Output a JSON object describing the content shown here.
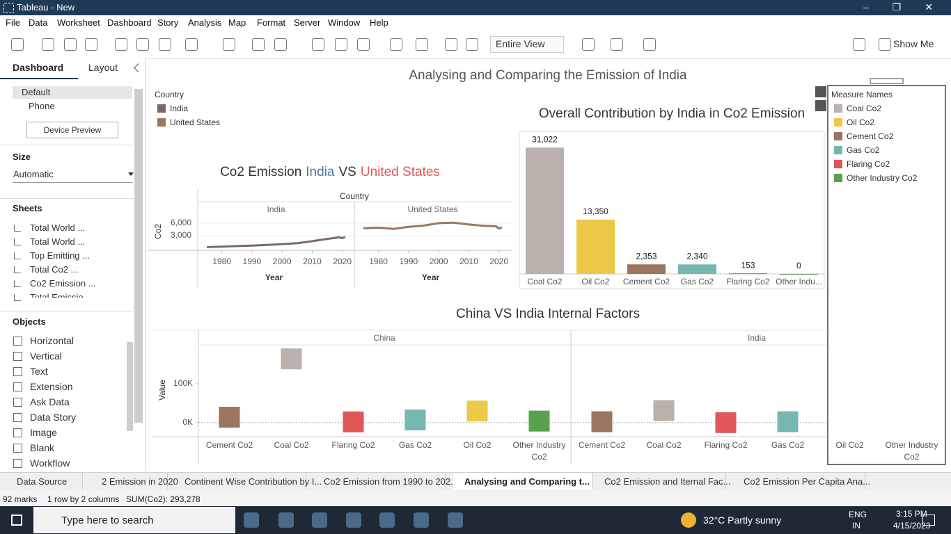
{
  "window": {
    "title": "Tableau - New"
  },
  "menu": [
    "File",
    "Data",
    "Worksheet",
    "Dashboard",
    "Story",
    "Analysis",
    "Map",
    "Format",
    "Server",
    "Window",
    "Help"
  ],
  "toolbar": {
    "fit": "Entire View",
    "show_me": "Show Me"
  },
  "side_panel": {
    "tabs": [
      "Dashboard",
      "Layout"
    ],
    "devices": [
      "Default",
      "Phone"
    ],
    "device_preview": "Device Preview",
    "size_heading": "Size",
    "size_value": "Automatic",
    "sheets_heading": "Sheets",
    "sheets": [
      "Total World ...",
      "Total World ...",
      "Top Emitting ...",
      "Total Co2 ...",
      "Co2 Emission ...",
      "Total Emissio"
    ],
    "objects_heading": "Objects",
    "objects": [
      "Horizontal",
      "Vertical",
      "Text",
      "Extension",
      "Ask Data",
      "Data Story",
      "Image",
      "Blank",
      "Workflow"
    ]
  },
  "dashboard": {
    "title": "Analysing and Comparing the Emission of India",
    "country_legend_title": "Country"
  },
  "chart_data": [
    {
      "type": "line",
      "title_parts": [
        "Co2 Emission",
        "India",
        "VS",
        "United States"
      ],
      "title_colors": [
        "#333333",
        "#4e79a7",
        "#333333",
        "#e15759"
      ],
      "column_header": "Country",
      "x_label": "Year",
      "y_label": "Co2",
      "x": [
        1975,
        1980,
        1985,
        1990,
        1995,
        2000,
        2005,
        2010,
        2015,
        2019,
        2020,
        2021
      ],
      "series": [
        {
          "name": "India",
          "color": "#7b6a63",
          "values": [
            260,
            390,
            520,
            620,
            790,
            980,
            1210,
            1680,
            2230,
            2620,
            2440,
            2710
          ]
        },
        {
          "name": "United States",
          "color": "#9c7762",
          "values": [
            4780,
            4940,
            4640,
            5120,
            5420,
            6010,
            6130,
            5680,
            5380,
            5260,
            4710,
            5010
          ]
        }
      ],
      "xlim": [
        1972,
        2024
      ],
      "xticks": [
        1980,
        1990,
        2000,
        2010,
        2020
      ],
      "ylim": [
        0,
        8000
      ],
      "yticks": [
        {
          "value": 3000,
          "label": "3,000"
        },
        {
          "value": 6000,
          "label": "6,000"
        }
      ],
      "grid": true
    },
    {
      "type": "bar",
      "title": "Overall Contribution by India in Co2 Emission",
      "categories": [
        "Coal Co2",
        "Oil Co2",
        "Cement Co2",
        "Gas Co2",
        "Flaring Co2",
        "Other Indu..."
      ],
      "values": [
        31022,
        13350,
        2353,
        2340,
        153,
        0
      ],
      "value_labels": [
        "31,022",
        "13,350",
        "2,353",
        "2,340",
        "153",
        "0"
      ],
      "colors": [
        "#bab0ac",
        "#edc948",
        "#9c755f",
        "#76b7b2",
        "#e15759",
        "#59a14f"
      ],
      "ylim": [
        0,
        35000
      ]
    },
    {
      "type": "square",
      "title": "China VS India Internal Factors",
      "y_label": "Value",
      "legend_title": "Measure Names",
      "categories": [
        "Cement Co2",
        "Coal Co2",
        "Flaring Co2",
        "Gas Co2",
        "Oil Co2",
        "Other Industry Co2"
      ],
      "colors": [
        "#9c755f",
        "#bab0ac",
        "#e15759",
        "#76b7b2",
        "#edc948",
        "#59a14f"
      ],
      "legend_order": [
        1,
        4,
        0,
        3,
        2,
        5
      ],
      "series": [
        {
          "name": "China",
          "values": [
            14000,
            164000,
            2000,
            7000,
            30000,
            4000
          ]
        },
        {
          "name": "India",
          "values": [
            2353,
            31022,
            153,
            2340,
            13350,
            0
          ]
        }
      ],
      "ylim": [
        -36000,
        200000
      ],
      "yticks": [
        {
          "value": 0,
          "label": "0K"
        },
        {
          "value": 100000,
          "label": "100K"
        }
      ]
    }
  ],
  "sheet_tabs": [
    "Data Source",
    "2 Emission in 2020",
    "Continent Wise Contribution by I...",
    "Co2 Emission from 1990 to 202...",
    "Analysing and Comparing t...",
    "Co2 Emission and Iternal Fac...",
    "Co2 Emission Per Capita Ana..."
  ],
  "status_bar": [
    "92 marks",
    "1 row by 2 columns",
    "SUM(Co2): 293,278"
  ],
  "taskbar": {
    "search": "Type here to search",
    "weather": "32°C Partly sunny",
    "lang": [
      "ENG",
      "IN"
    ],
    "time": "3:15 PM",
    "date": "4/15/2023"
  }
}
